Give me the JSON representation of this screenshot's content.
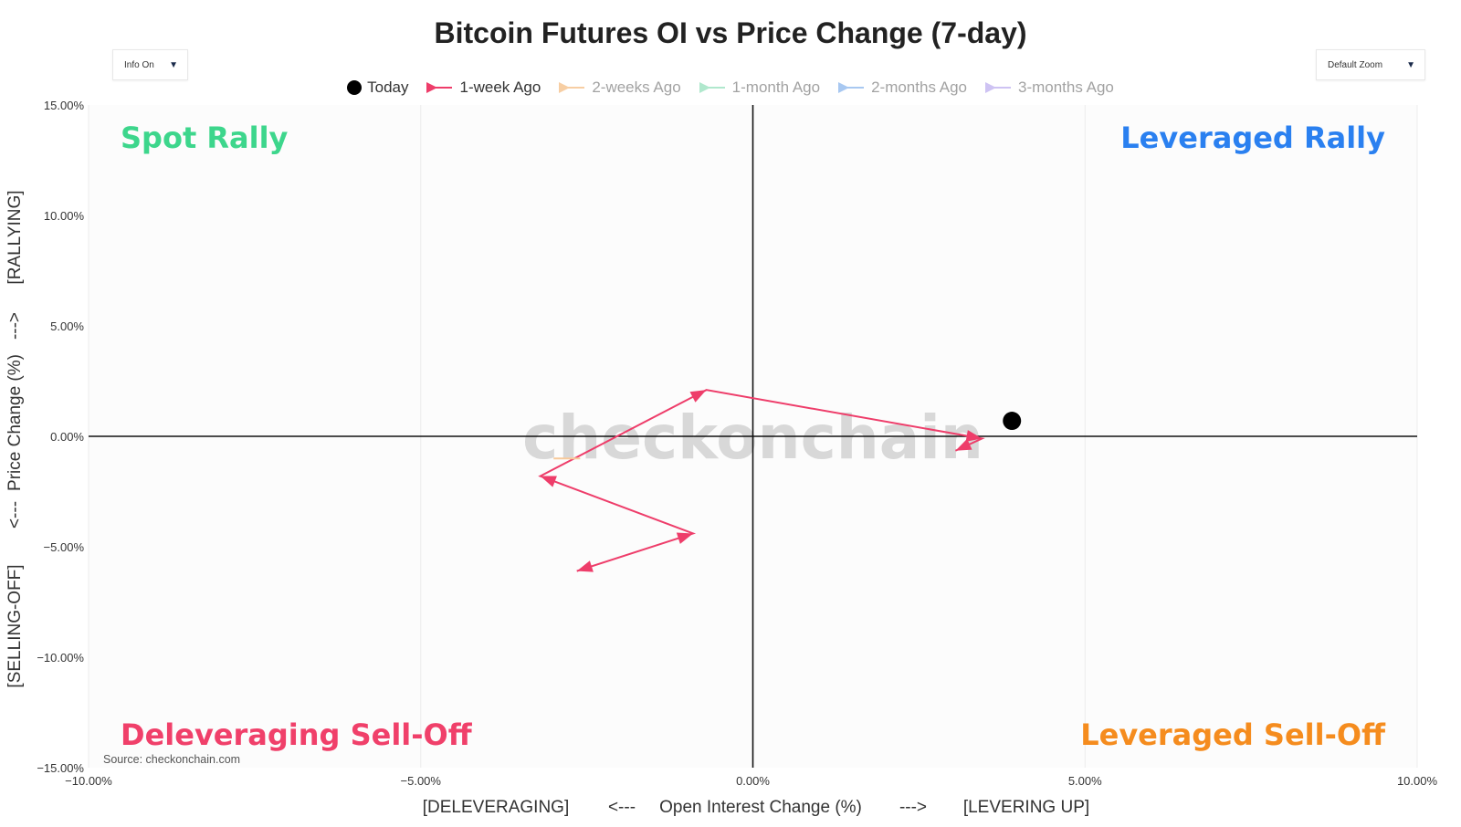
{
  "controls": {
    "info_dropdown": "Info On",
    "zoom_dropdown": "Default Zoom",
    "dropdown_arrow": "▼"
  },
  "legend": [
    {
      "label": "Today",
      "color": "#000000",
      "icon": "dot"
    },
    {
      "label": "1-week Ago",
      "color": "#ee3d6a",
      "icon": "arrow-line"
    },
    {
      "label": "2-weeks Ago",
      "color": "#f7c99a",
      "icon": "arrow-line"
    },
    {
      "label": "1-month Ago",
      "color": "#a8e6c8",
      "icon": "arrow-line"
    },
    {
      "label": "2-months Ago",
      "color": "#9fc3f0",
      "icon": "arrow-line"
    },
    {
      "label": "3-months Ago",
      "color": "#c9bdf2",
      "icon": "arrow-line"
    }
  ],
  "chart_data": {
    "type": "scatter",
    "title": "Bitcoin Futures OI vs Price Change (7-day)",
    "xlabel_parts": [
      "[DELEVERAGING]",
      "<---",
      "Open Interest Change (%)",
      "--->",
      "[LEVERING UP]"
    ],
    "ylabel_parts": [
      "[SELLING-OFF]",
      "<---",
      "Price Change (%)",
      "--->",
      "[RALLYING]"
    ],
    "xlim": [
      -10,
      10
    ],
    "ylim": [
      -15,
      15
    ],
    "x_ticks": [
      -10,
      -5,
      0,
      5,
      10
    ],
    "y_ticks": [
      -15,
      -10,
      -5,
      0,
      5,
      10,
      15
    ],
    "x_tick_labels": [
      "−10.00%",
      "−5.00%",
      "0.00%",
      "5.00%",
      "10.00%"
    ],
    "y_tick_labels": [
      "−15.00%",
      "−10.00%",
      "−5.00%",
      "0.00%",
      "5.00%",
      "10.00%",
      "15.00%"
    ],
    "quadrants": [
      {
        "label": "Spot Rally",
        "color": "#3dd68c",
        "position": "top-left"
      },
      {
        "label": "Leveraged Rally",
        "color": "#2a80f0",
        "position": "top-right"
      },
      {
        "label": "Deleveraging Sell-Off",
        "color": "#f0406a",
        "position": "bottom-left"
      },
      {
        "label": "Leveraged Sell-Off",
        "color": "#f58c1e",
        "position": "bottom-right"
      }
    ],
    "grid": true,
    "legend_position": "top-center",
    "watermark": "checkonchain",
    "source": "Source: checkonchain.com",
    "series": [
      {
        "name": "Today",
        "points": [
          {
            "x": 3.9,
            "y": 0.7
          }
        ],
        "color": "#000000"
      },
      {
        "name": "1-week Ago",
        "color": "#ee3d6a",
        "points": [
          {
            "x": -2.65,
            "y": -6.1
          },
          {
            "x": -0.9,
            "y": -4.4
          },
          {
            "x": -3.2,
            "y": -1.8
          },
          {
            "x": -0.7,
            "y": 2.1
          },
          {
            "x": 3.45,
            "y": -0.1
          },
          {
            "x": 3.05,
            "y": -0.65
          }
        ]
      },
      {
        "name": "2-weeks Ago",
        "color": "#f7c99a",
        "points": [
          {
            "x": -3.0,
            "y": -1.0
          },
          {
            "x": -2.6,
            "y": -1.0
          }
        ]
      }
    ]
  }
}
